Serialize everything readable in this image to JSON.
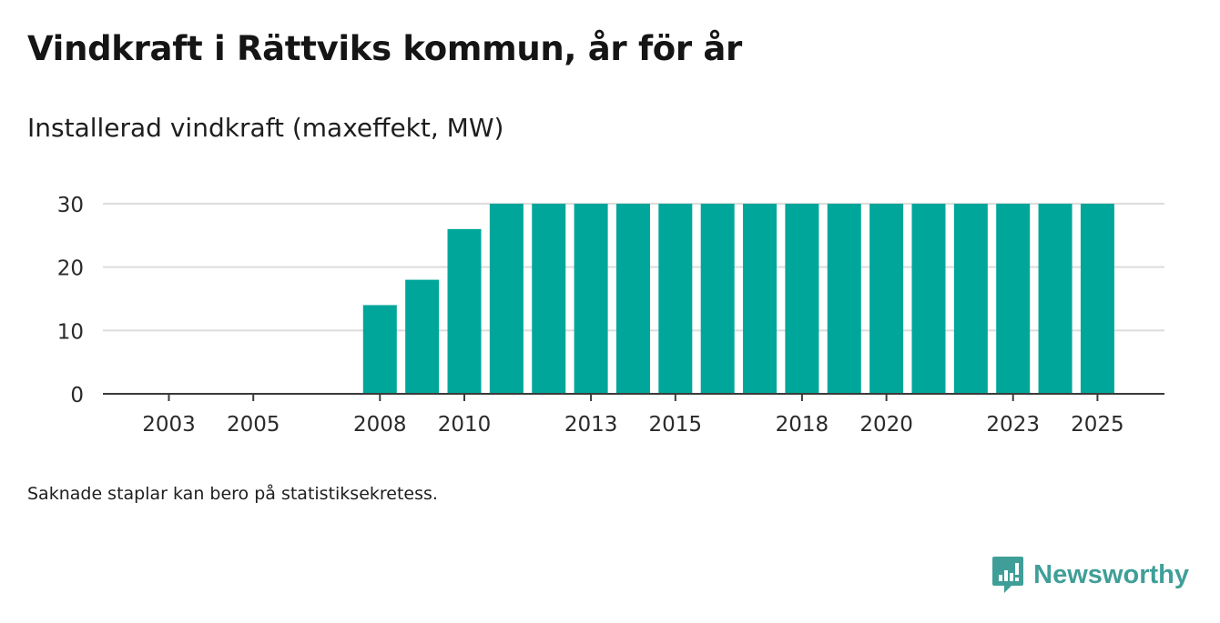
{
  "title": "Vindkraft i Rättviks kommun, år för år",
  "subtitle": "Installerad vindkraft (maxeffekt, MW)",
  "footnote": "Saknade staplar kan bero på statistiksekretess.",
  "brand": {
    "name": "Newsworthy",
    "icon": "newsworthy-logo-icon",
    "color": "#3f9f98"
  },
  "chart_data": {
    "type": "bar",
    "title": "Vindkraft i Rättviks kommun, år för år",
    "ylabel": "Installerad vindkraft (maxeffekt, MW)",
    "xlabel": "",
    "categories": [
      2003,
      2004,
      2005,
      2006,
      2007,
      2008,
      2009,
      2010,
      2011,
      2012,
      2013,
      2014,
      2015,
      2016,
      2017,
      2018,
      2019,
      2020,
      2021,
      2022,
      2023,
      2024,
      2025
    ],
    "values": [
      0,
      0,
      0,
      0,
      0,
      14,
      18,
      26,
      30,
      30,
      30,
      30,
      30,
      30,
      30,
      30,
      30,
      30,
      30,
      30,
      30,
      30,
      30
    ],
    "ylim": [
      0,
      30
    ],
    "yticks": [
      0,
      10,
      20,
      30
    ],
    "xticks": [
      2003,
      2005,
      2008,
      2010,
      2013,
      2015,
      2018,
      2020,
      2023,
      2025
    ],
    "bar_color": "#00a69a",
    "grid": true
  }
}
